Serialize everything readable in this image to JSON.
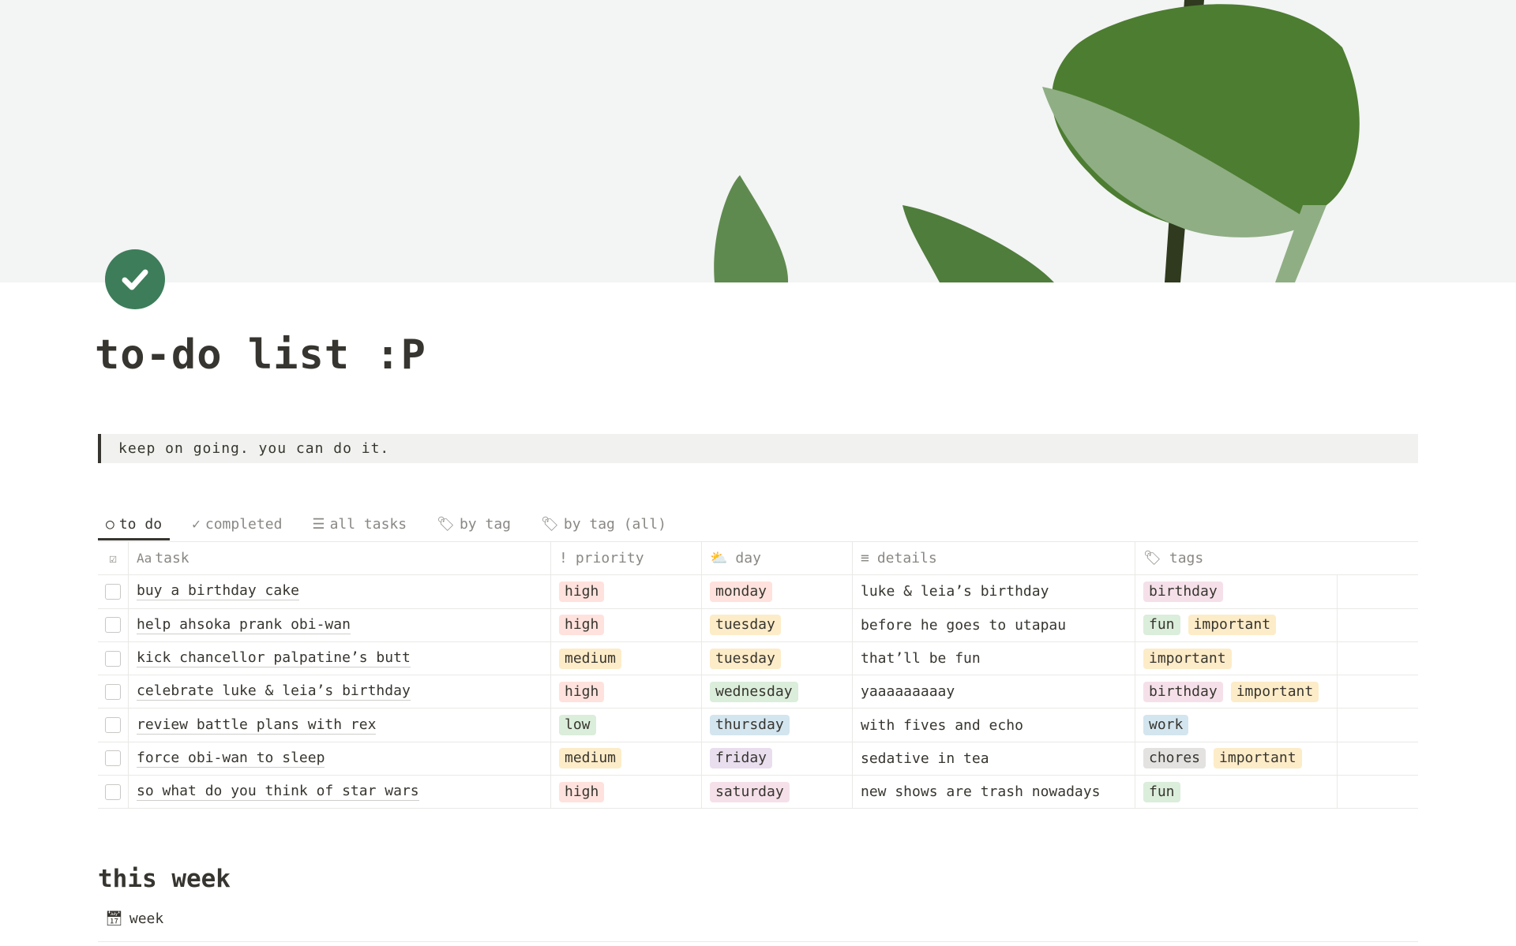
{
  "page": {
    "title": "to-do list :P",
    "quote": "keep on going. you can do it.",
    "icon": "check-circle-icon",
    "accent": "#3d7d5a"
  },
  "tabs": [
    {
      "label": "to do",
      "icon": "circle-icon",
      "active": true
    },
    {
      "label": "completed",
      "icon": "check-icon"
    },
    {
      "label": "all tasks",
      "icon": "list-icon"
    },
    {
      "label": "by tag",
      "icon": "tag-icon"
    },
    {
      "label": "by tag (all)",
      "icon": "tag-icon"
    }
  ],
  "columns": {
    "task_prefix": "Aa",
    "task": "task",
    "priority": "priority",
    "day": "day",
    "details": "details",
    "tags": "tags"
  },
  "rows": [
    {
      "task": "buy a birthday cake",
      "priority": "high",
      "priority_color": "red",
      "day": "monday",
      "day_color": "red",
      "details": "luke & leia’s birthday",
      "tags": [
        {
          "t": "birthday",
          "c": "pink"
        }
      ]
    },
    {
      "task": "help ahsoka prank obi-wan",
      "priority": "high",
      "priority_color": "red",
      "day": "tuesday",
      "day_color": "yellow",
      "details": "before he goes to utapau",
      "tags": [
        {
          "t": "fun",
          "c": "green"
        },
        {
          "t": "important",
          "c": "yellow"
        }
      ]
    },
    {
      "task": "kick chancellor palpatine’s butt",
      "priority": "medium",
      "priority_color": "yellow",
      "day": "tuesday",
      "day_color": "yellow",
      "details": "that’ll be fun",
      "tags": [
        {
          "t": "important",
          "c": "yellow"
        }
      ]
    },
    {
      "task": "celebrate luke & leia’s birthday",
      "priority": "high",
      "priority_color": "red",
      "day": "wednesday",
      "day_color": "green",
      "details": "yaaaaaaaaay",
      "tags": [
        {
          "t": "birthday",
          "c": "pink"
        },
        {
          "t": "important",
          "c": "yellow"
        }
      ]
    },
    {
      "task": "review battle plans with rex",
      "priority": "low",
      "priority_color": "green",
      "day": "thursday",
      "day_color": "blue",
      "details": "with fives and echo",
      "tags": [
        {
          "t": "work",
          "c": "blue"
        }
      ]
    },
    {
      "task": "force obi-wan to sleep",
      "priority": "medium",
      "priority_color": "yellow",
      "day": "friday",
      "day_color": "purple",
      "details": "sedative in tea",
      "tags": [
        {
          "t": "chores",
          "c": "gray"
        },
        {
          "t": "important",
          "c": "yellow"
        }
      ]
    },
    {
      "task": "so what do you think of star wars",
      "priority": "high",
      "priority_color": "red",
      "day": "saturday",
      "day_color": "pink",
      "details": "new shows are trash nowadays",
      "tags": [
        {
          "t": "fun",
          "c": "green"
        }
      ]
    }
  ],
  "section": {
    "title": "this week",
    "view_label": "week",
    "view_icon": "calendar-icon"
  }
}
